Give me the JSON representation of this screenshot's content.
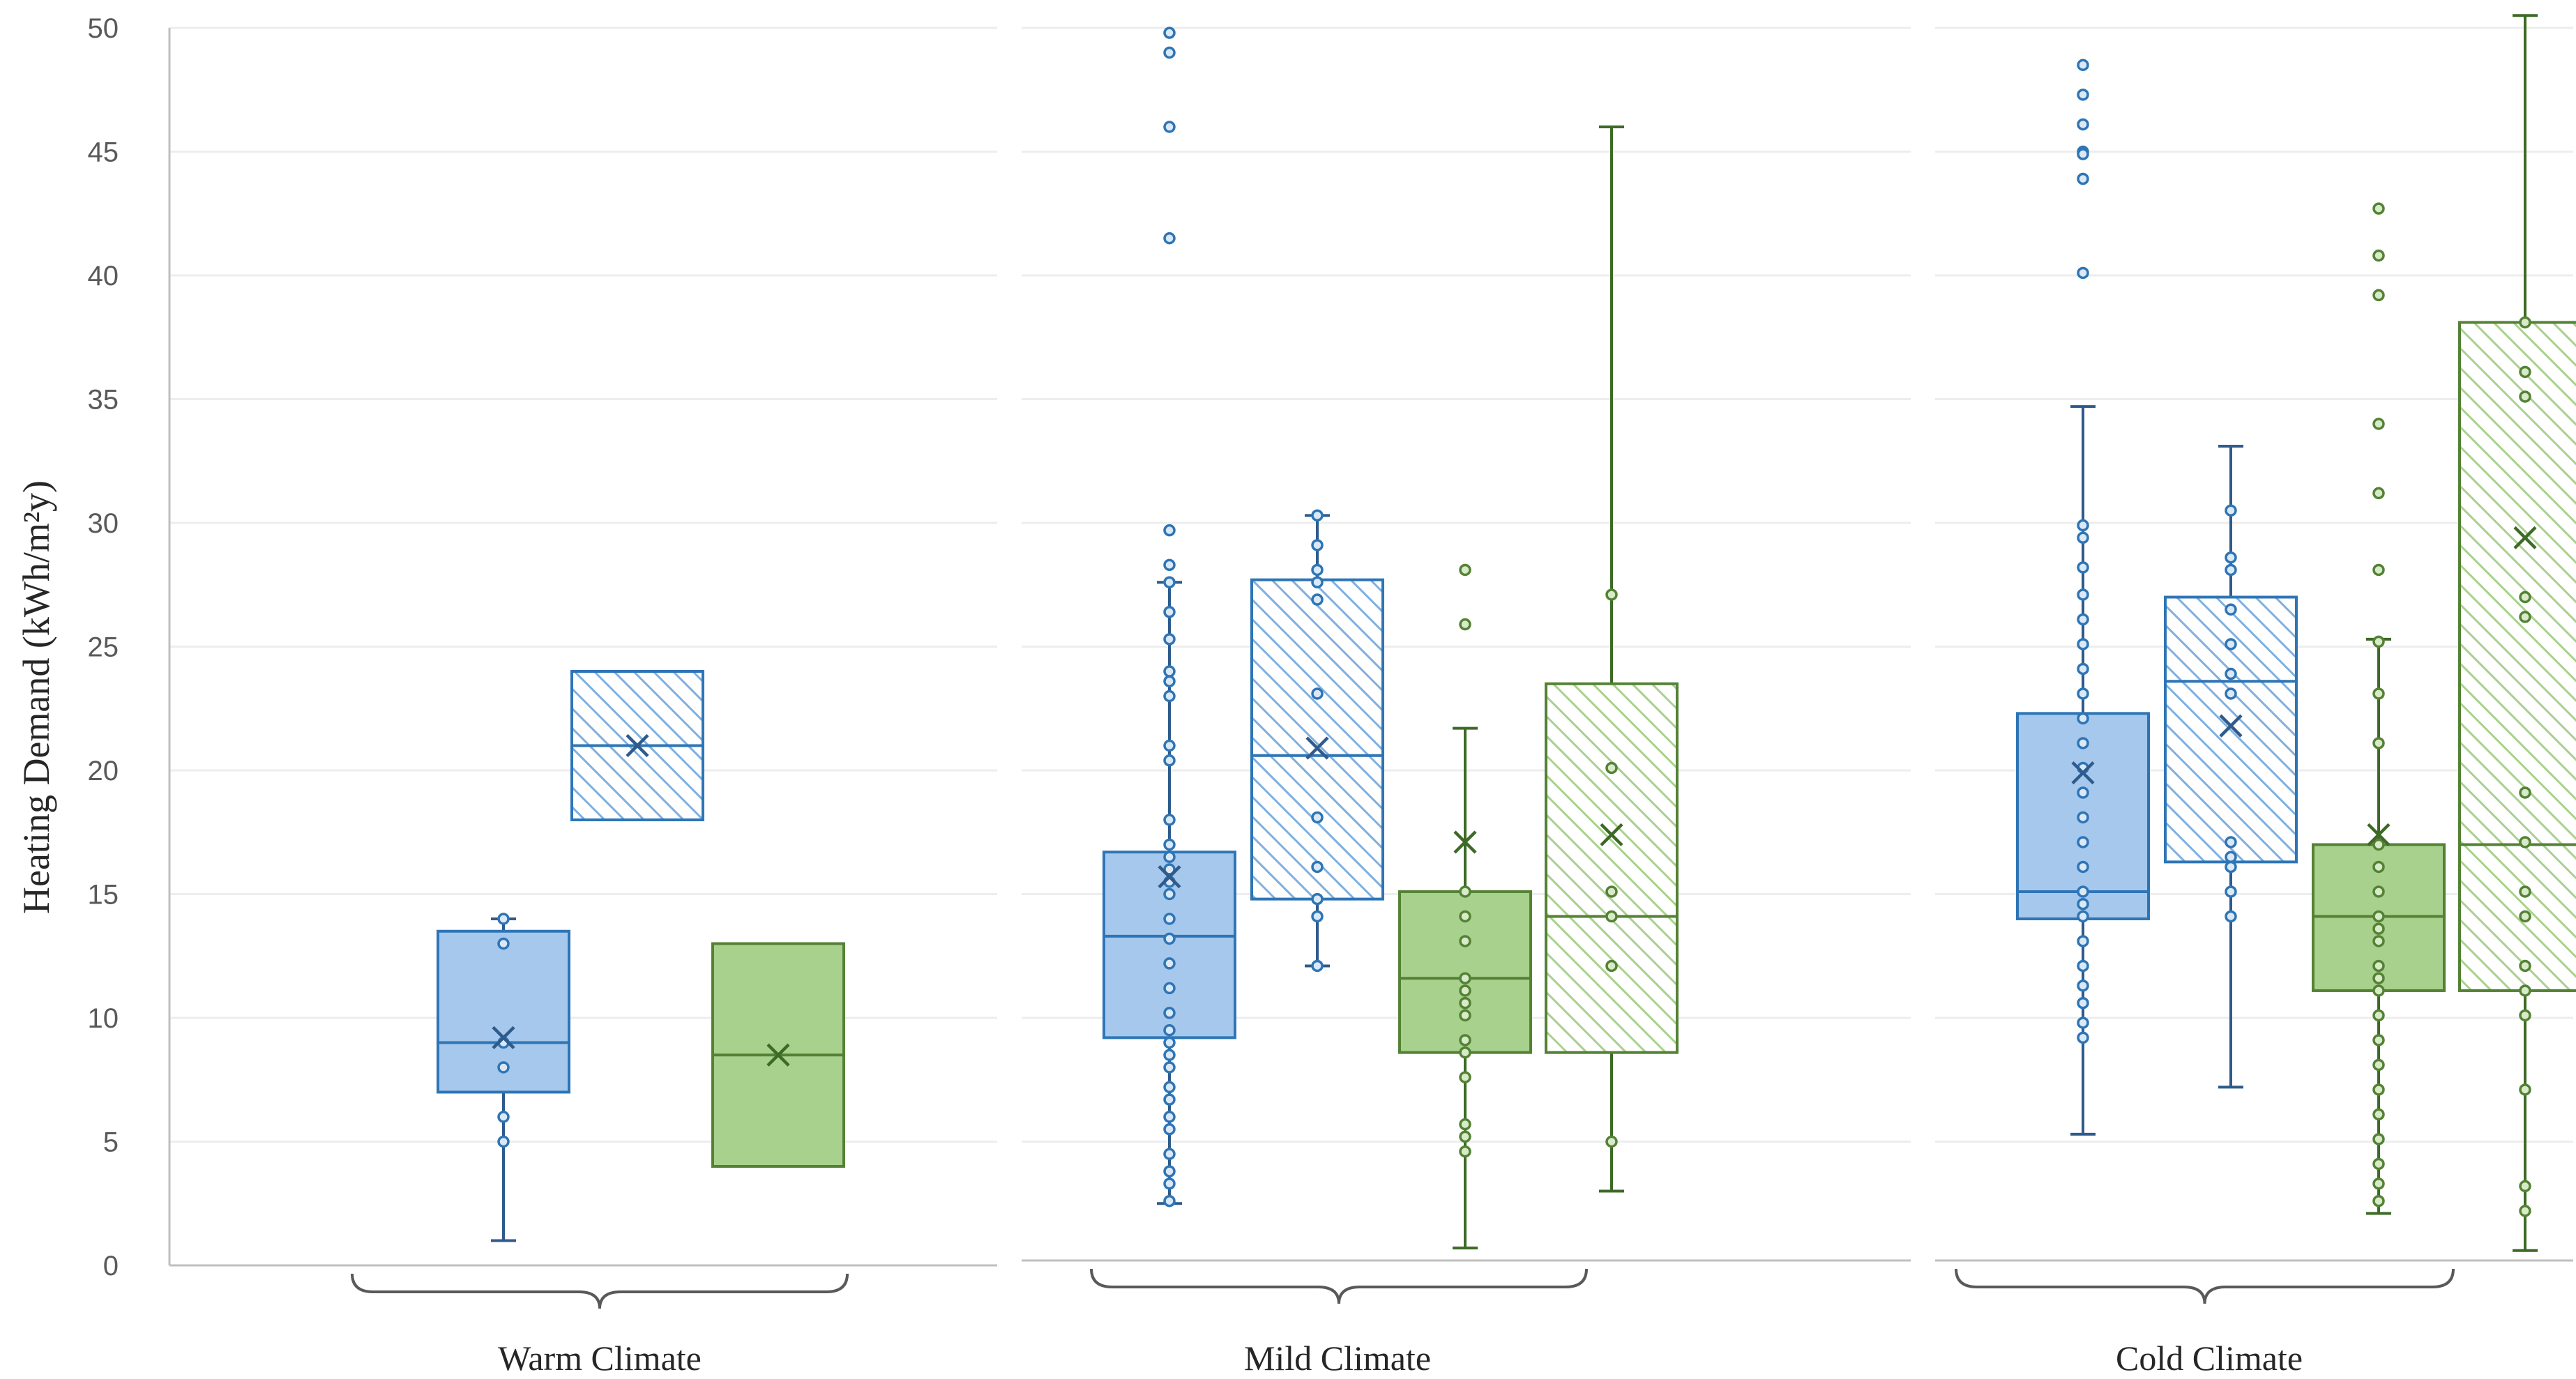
{
  "chart_data": {
    "type": "boxplot",
    "ylabel": "Heating Demand (kWh/m²y)",
    "ylim": [
      0,
      50
    ],
    "yticks": [
      0,
      5,
      10,
      15,
      20,
      25,
      30,
      35,
      40,
      45,
      50
    ],
    "colors": {
      "blue_fill": "#a6c8ec",
      "blue_stroke": "#2e75b6",
      "blue_dark": "#2f5b8c",
      "blue_hatch": "#7fb0e0",
      "green_fill": "#a9d18e",
      "green_stroke": "#548235",
      "green_dark": "#3d6a26",
      "green_hatch": "#a9d18e"
    },
    "groups": [
      {
        "label": "Warm Climate",
        "boxes": [
          {
            "color": "blue",
            "hatched": false,
            "min": 1,
            "q1": 7,
            "median": 9,
            "q3": 13.5,
            "max": 14,
            "mean": 9.2,
            "points": [
              14,
              13,
              9,
              8,
              6,
              5
            ]
          },
          {
            "color": "blue",
            "hatched": true,
            "min": 18,
            "q1": 18,
            "median": 21,
            "q3": 24,
            "max": 24,
            "mean": 21,
            "points": []
          },
          {
            "color": "green",
            "hatched": false,
            "min": 4,
            "q1": 4,
            "median": 8.5,
            "q3": 13,
            "max": 13,
            "mean": 8.5,
            "points": []
          }
        ]
      },
      {
        "label": "Mild Climate",
        "boxes": [
          {
            "color": "blue",
            "hatched": false,
            "min": 2.5,
            "q1": 9.2,
            "median": 13.3,
            "q3": 16.7,
            "max": 27.6,
            "mean": 15.7,
            "points": [
              49.8,
              49,
              46,
              41.5,
              29.7,
              28.3,
              27.6,
              26.4,
              25.3,
              24,
              23.6,
              23,
              21,
              20.4,
              18,
              17,
              16.5,
              16,
              15.5,
              15,
              14,
              13.2,
              12.2,
              11.2,
              10.2,
              9.5,
              9,
              8.5,
              8,
              7.2,
              6.7,
              6,
              5.5,
              4.5,
              3.8,
              3.3,
              2.6
            ]
          },
          {
            "color": "blue",
            "hatched": true,
            "min": 12.1,
            "q1": 14.8,
            "median": 20.6,
            "q3": 27.7,
            "max": 30.3,
            "mean": 20.9,
            "points": [
              30.3,
              29.1,
              28.1,
              27.6,
              26.9,
              23.1,
              18.1,
              16.1,
              14.8,
              14.1,
              12.1
            ]
          },
          {
            "color": "green",
            "hatched": false,
            "min": 0.7,
            "q1": 8.6,
            "median": 11.6,
            "q3": 15.1,
            "max": 21.7,
            "mean": 17.1,
            "points": [
              28.1,
              25.9,
              15.1,
              14.1,
              13.1,
              11.6,
              11.1,
              10.6,
              10.1,
              9.1,
              8.6,
              7.6,
              5.7,
              5.2,
              4.6
            ]
          },
          {
            "color": "green",
            "hatched": true,
            "min": 3,
            "q1": 8.6,
            "median": 14.1,
            "q3": 23.5,
            "max": 46,
            "mean": 17.4,
            "points": [
              27.1,
              20.1,
              15.1,
              14.1,
              12.1,
              5
            ]
          }
        ]
      },
      {
        "label": "Cold Climate",
        "boxes": [
          {
            "color": "blue",
            "hatched": false,
            "min": 5.3,
            "q1": 14,
            "median": 15.1,
            "q3": 22.3,
            "max": 34.7,
            "mean": 19.9,
            "points": [
              48.5,
              47.3,
              46.1,
              45,
              44.9,
              43.9,
              40.1,
              29.9,
              29.4,
              28.2,
              27.1,
              26.1,
              25.1,
              24.1,
              23.1,
              22.1,
              21.1,
              20.1,
              19.1,
              18.1,
              17.1,
              16.1,
              15.1,
              14.6,
              14.1,
              13.1,
              12.1,
              11.3,
              10.6,
              9.8,
              9.2
            ]
          },
          {
            "color": "blue",
            "hatched": true,
            "min": 7.2,
            "q1": 16.3,
            "median": 23.6,
            "q3": 27,
            "max": 33.1,
            "mean": 21.8,
            "points": [
              30.5,
              28.6,
              28.1,
              26.5,
              25.1,
              23.9,
              23.1,
              17.1,
              16.5,
              16.1,
              15.1,
              14.1
            ]
          },
          {
            "color": "green",
            "hatched": false,
            "min": 2.1,
            "q1": 11.1,
            "median": 14.1,
            "q3": 17,
            "max": 25.3,
            "mean": 17.4,
            "points": [
              42.7,
              40.8,
              39.2,
              34,
              31.2,
              28.1,
              25.2,
              23.1,
              21.1,
              17,
              16.1,
              15.1,
              14.1,
              13.6,
              13.1,
              12.1,
              11.6,
              11.1,
              10.1,
              9.1,
              8.1,
              7.1,
              6.1,
              5.1,
              4.1,
              3.3,
              2.6
            ]
          },
          {
            "color": "green",
            "hatched": true,
            "min": 0.6,
            "q1": 11.1,
            "median": 17,
            "q3": 38.1,
            "max": 50.5,
            "mean": 29.4,
            "points": [
              38.1,
              36.1,
              35.1,
              27,
              26.2,
              19.1,
              17.1,
              15.1,
              14.1,
              12.1,
              11.1,
              10.1,
              7.1,
              3.2,
              2.2
            ]
          }
        ]
      }
    ]
  }
}
